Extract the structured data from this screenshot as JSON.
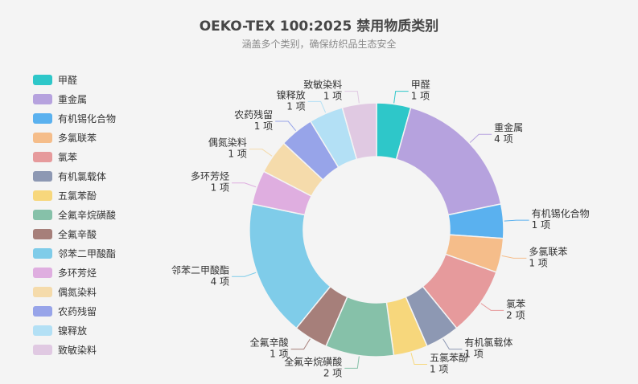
{
  "chart_data": {
    "type": "pie",
    "variant": "donut",
    "title": "OEKO-TEX 100:2025 禁用物质类别",
    "subtitle": "涵盖多个类别，确保纺织品生态安全",
    "unit": "项",
    "legend_position": "left",
    "slices": [
      {
        "label": "甲醛",
        "value": 1,
        "color": "#2ec7c9"
      },
      {
        "label": "重金属",
        "value": 4,
        "color": "#b6a2de"
      },
      {
        "label": "有机锡化合物",
        "value": 1,
        "color": "#5ab1ef"
      },
      {
        "label": "多氯联苯",
        "value": 1,
        "color": "#f5bd8a"
      },
      {
        "label": "氯苯",
        "value": 2,
        "color": "#e69a9c"
      },
      {
        "label": "有机氯载体",
        "value": 1,
        "color": "#8d98b3"
      },
      {
        "label": "五氯苯酚",
        "value": 1,
        "color": "#f7d77c"
      },
      {
        "label": "全氟辛烷磺酸",
        "value": 2,
        "color": "#86c1a9"
      },
      {
        "label": "全氟辛酸",
        "value": 1,
        "color": "#a67f7a"
      },
      {
        "label": "邻苯二甲酸酯",
        "value": 4,
        "color": "#7fcce9"
      },
      {
        "label": "多环芳烃",
        "value": 1,
        "color": "#dfaee0"
      },
      {
        "label": "偶氮染料",
        "value": 1,
        "color": "#f5dbab"
      },
      {
        "label": "农药残留",
        "value": 1,
        "color": "#97a4e9"
      },
      {
        "label": "镍释放",
        "value": 1,
        "color": "#b3e0f5"
      },
      {
        "label": "致敏染料",
        "value": 1,
        "color": "#e0c9e2"
      }
    ]
  }
}
